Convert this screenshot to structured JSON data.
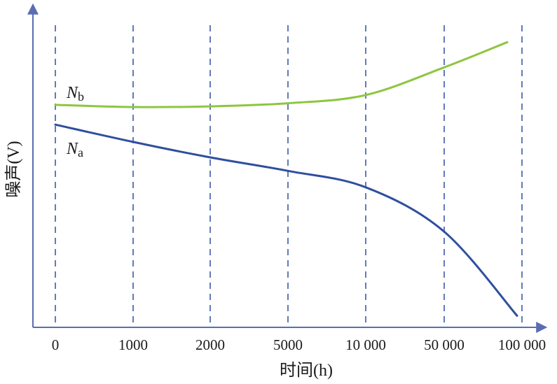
{
  "chart_data": {
    "type": "line",
    "xlabel": "时间(h)",
    "ylabel": "噪声(V)",
    "categories": [
      "0",
      "1000",
      "2000",
      "5000",
      "10 000",
      "50 000",
      "100 000"
    ],
    "y_ticks_shown": false,
    "grid": "vertical dashed lines at each category",
    "series": [
      {
        "name": "N_b",
        "label_main": "N",
        "label_sub": "b",
        "color": "#8dc63f",
        "values": [
          0.707,
          0.7,
          0.702,
          0.712,
          0.738,
          0.826,
          0.906
        ]
      },
      {
        "name": "N_a",
        "label_main": "N",
        "label_sub": "a",
        "color": "#2e4f9e",
        "values": [
          0.644,
          0.589,
          0.54,
          0.497,
          0.445,
          0.304,
          0.037
        ]
      }
    ]
  },
  "colors": {
    "axis": "#5a6db2",
    "grid": "#3b5aa6"
  }
}
